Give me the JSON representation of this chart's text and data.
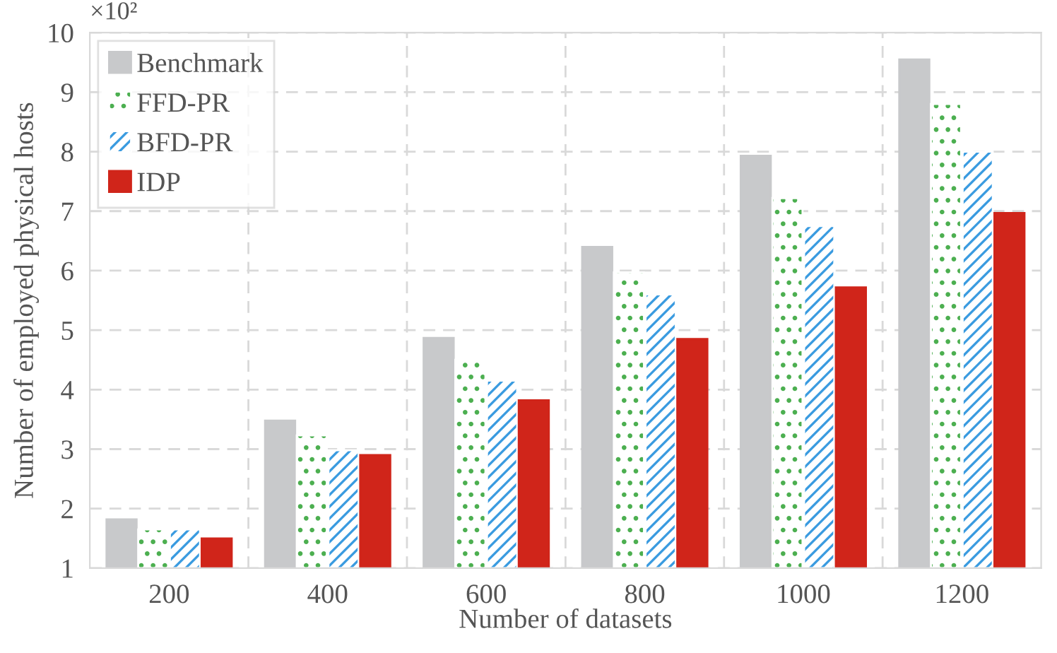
{
  "chart_data": {
    "type": "bar",
    "xlabel": "Number of datasets",
    "ylabel": "Number of employed physical hosts",
    "annotations": [
      "×10²"
    ],
    "categories": [
      "200",
      "400",
      "600",
      "800",
      "1000",
      "1200"
    ],
    "series": [
      {
        "name": "Benchmark",
        "color": "#c8c9cb",
        "values": [
          1.82,
          3.48,
          4.87,
          6.4,
          7.93,
          9.55
        ]
      },
      {
        "name": "FFD-PR",
        "color": "#ffffff",
        "values": [
          1.65,
          3.23,
          4.5,
          5.97,
          7.22,
          8.8
        ]
      },
      {
        "name": "BFD-PR",
        "color": "#ffffff",
        "values": [
          1.65,
          2.98,
          4.15,
          5.6,
          6.75,
          8.0
        ]
      },
      {
        "name": "IDP",
        "color": "#d0251a",
        "values": [
          1.5,
          2.9,
          3.82,
          4.85,
          5.72,
          6.97
        ]
      }
    ],
    "ylim": [
      1,
      10
    ],
    "yticks": [
      1,
      2,
      3,
      4,
      5,
      6,
      7,
      8,
      9,
      10
    ],
    "grid": true,
    "legend": "top left"
  }
}
